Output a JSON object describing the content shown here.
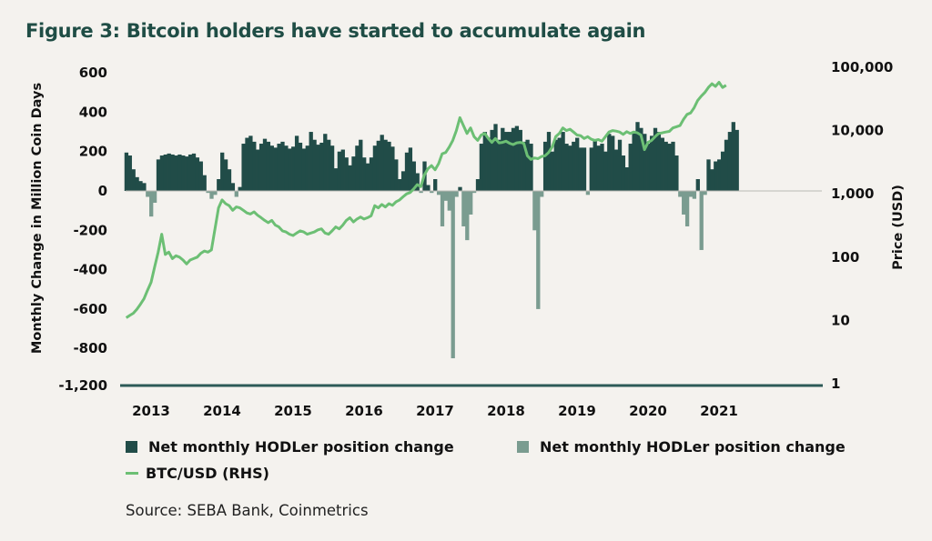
{
  "title": "Figure 3: Bitcoin holders have started to accumulate again",
  "source": "Source: SEBA Bank, Coinmetrics",
  "colors": {
    "background": "#f4f2ee",
    "title": "#1f4d45",
    "positive_bars": "#214c48",
    "negative_bars": "#7a9c90",
    "btc_line": "#6cbf74",
    "axis_baseline": "#2c5a57"
  },
  "chart_data": {
    "type": "area",
    "title": "Figure 3: Bitcoin holders have started to accumulate again",
    "ylabel": "Monthly Change in Million Coin Days",
    "y2label": "Price (USD)",
    "xlabel": "",
    "x_ticks": [
      "2013",
      "2014",
      "2015",
      "2016",
      "2017",
      "2018",
      "2019",
      "2020",
      "2021"
    ],
    "y_ticks": [
      "600",
      "400",
      "200",
      "0",
      "-200",
      "-400",
      "-600",
      "-800",
      "-1,200"
    ],
    "y2_ticks": [
      "100,000",
      "10,000",
      "1,000",
      "100",
      "10",
      "1"
    ],
    "ylim": [
      -1200,
      600
    ],
    "y_axis_break": "between -800 and -1,200",
    "y2lim": [
      1,
      100000
    ],
    "y2_scale": "log",
    "grid": false,
    "legend_position": "bottom",
    "legend": [
      {
        "label": "Net monthly HODLer position change",
        "type": "area",
        "color": "#214c48"
      },
      {
        "label": "Net monthly HODLer position change",
        "type": "area",
        "color": "#7a9c90"
      },
      {
        "label": "BTC/USD (RHS)",
        "type": "line",
        "color": "#6cbf74"
      }
    ],
    "x": [
      2012.65,
      2012.7,
      2012.75,
      2012.8,
      2012.85,
      2012.9,
      2012.95,
      2013.0,
      2013.05,
      2013.1,
      2013.15,
      2013.2,
      2013.25,
      2013.3,
      2013.35,
      2013.4,
      2013.45,
      2013.5,
      2013.55,
      2013.6,
      2013.65,
      2013.7,
      2013.75,
      2013.8,
      2013.85,
      2013.9,
      2013.95,
      2014.0,
      2014.05,
      2014.1,
      2014.15,
      2014.2,
      2014.25,
      2014.3,
      2014.35,
      2014.4,
      2014.45,
      2014.5,
      2014.55,
      2014.6,
      2014.65,
      2014.7,
      2014.75,
      2014.8,
      2014.85,
      2014.9,
      2014.95,
      2015.0,
      2015.05,
      2015.1,
      2015.15,
      2015.2,
      2015.25,
      2015.3,
      2015.35,
      2015.4,
      2015.45,
      2015.5,
      2015.55,
      2015.6,
      2015.65,
      2015.7,
      2015.75,
      2015.8,
      2015.85,
      2015.9,
      2015.95,
      2016.0,
      2016.05,
      2016.1,
      2016.15,
      2016.2,
      2016.25,
      2016.3,
      2016.35,
      2016.4,
      2016.45,
      2016.5,
      2016.55,
      2016.6,
      2016.65,
      2016.7,
      2016.75,
      2016.8,
      2016.85,
      2016.9,
      2016.95,
      2017.0,
      2017.05,
      2017.1,
      2017.15,
      2017.2,
      2017.25,
      2017.3,
      2017.35,
      2017.4,
      2017.45,
      2017.5,
      2017.55,
      2017.6,
      2017.65,
      2017.7,
      2017.75,
      2017.8,
      2017.85,
      2017.9,
      2017.95,
      2018.0,
      2018.05,
      2018.1,
      2018.15,
      2018.2,
      2018.25,
      2018.3,
      2018.35,
      2018.4,
      2018.45,
      2018.5,
      2018.55,
      2018.6,
      2018.65,
      2018.7,
      2018.75,
      2018.8,
      2018.85,
      2018.9,
      2018.95,
      2019.0,
      2019.05,
      2019.1,
      2019.15,
      2019.2,
      2019.25,
      2019.3,
      2019.35,
      2019.4,
      2019.45,
      2019.5,
      2019.55,
      2019.6,
      2019.65,
      2019.7,
      2019.75,
      2019.8,
      2019.85,
      2019.9,
      2019.95,
      2020.0,
      2020.05,
      2020.1,
      2020.15,
      2020.2,
      2020.25,
      2020.3,
      2020.35,
      2020.4,
      2020.45,
      2020.5,
      2020.55,
      2020.6,
      2020.65,
      2020.7,
      2020.75,
      2020.8,
      2020.85,
      2020.9,
      2020.95,
      2021.0,
      2021.05,
      2021.1,
      2021.15,
      2021.2,
      2021.25,
      2021.3,
      2021.35,
      2021.4
    ],
    "series": [
      {
        "name": "Net monthly HODLer position change",
        "axis": "left",
        "values": [
          195,
          180,
          110,
          70,
          50,
          40,
          -30,
          -130,
          -60,
          160,
          180,
          185,
          190,
          185,
          180,
          185,
          180,
          175,
          185,
          190,
          170,
          150,
          80,
          -10,
          -40,
          -20,
          60,
          195,
          160,
          110,
          40,
          -30,
          20,
          240,
          270,
          280,
          250,
          210,
          240,
          265,
          250,
          230,
          220,
          240,
          250,
          230,
          215,
          225,
          280,
          245,
          215,
          230,
          300,
          260,
          235,
          245,
          290,
          260,
          230,
          115,
          200,
          210,
          170,
          130,
          175,
          230,
          260,
          170,
          140,
          170,
          230,
          255,
          285,
          260,
          250,
          225,
          160,
          60,
          100,
          195,
          220,
          150,
          90,
          -10,
          150,
          30,
          -10,
          60,
          -20,
          -180,
          -50,
          -100,
          -850,
          -30,
          20,
          -180,
          -250,
          -120,
          -10,
          60,
          240,
          300,
          270,
          310,
          340,
          260,
          320,
          300,
          300,
          320,
          330,
          310,
          250,
          260,
          240,
          -200,
          -600,
          -30,
          250,
          300,
          200,
          260,
          270,
          300,
          240,
          230,
          250,
          270,
          220,
          220,
          -20,
          220,
          260,
          230,
          240,
          200,
          290,
          280,
          210,
          260,
          180,
          120,
          240,
          300,
          350,
          320,
          290,
          240,
          280,
          320,
          300,
          270,
          250,
          240,
          250,
          180,
          -30,
          -120,
          -180,
          -30,
          -40,
          60,
          -300,
          -20,
          160,
          110,
          150,
          160,
          200,
          260,
          300,
          350,
          310
        ]
      },
      {
        "name": "BTC/USD (RHS)",
        "axis": "right",
        "values": [
          11,
          12,
          13,
          15,
          18,
          22,
          30,
          40,
          70,
          120,
          230,
          110,
          120,
          95,
          105,
          100,
          90,
          78,
          90,
          95,
          100,
          115,
          125,
          120,
          130,
          280,
          600,
          800,
          700,
          650,
          550,
          620,
          600,
          550,
          500,
          480,
          520,
          460,
          420,
          380,
          350,
          380,
          320,
          300,
          260,
          250,
          230,
          220,
          240,
          260,
          250,
          230,
          240,
          250,
          270,
          280,
          240,
          230,
          260,
          300,
          280,
          320,
          380,
          420,
          360,
          400,
          430,
          400,
          420,
          450,
          650,
          600,
          680,
          620,
          700,
          660,
          750,
          800,
          900,
          1000,
          1050,
          1200,
          1400,
          1300,
          2000,
          2500,
          2800,
          2400,
          3000,
          4300,
          4500,
          5500,
          7000,
          10000,
          16000,
          12000,
          9000,
          11000,
          8000,
          7000,
          8500,
          9000,
          7500,
          6500,
          7500,
          6400,
          6500,
          6800,
          6300,
          6000,
          6400,
          6500,
          6300,
          4000,
          3500,
          3700,
          3600,
          3900,
          4000,
          4500,
          5500,
          8000,
          9000,
          11000,
          10000,
          10500,
          9500,
          8500,
          8300,
          7500,
          8000,
          7300,
          7000,
          7200,
          6800,
          8000,
          9500,
          10000,
          9800,
          9500,
          8700,
          9600,
          9000,
          9500,
          9200,
          8500,
          5000,
          6500,
          7000,
          8000,
          9000,
          9200,
          9500,
          9700,
          11000,
          11500,
          12000,
          15000,
          18000,
          19000,
          23000,
          30000,
          35000,
          40000,
          48000,
          55000,
          50000,
          58000,
          48000,
          52000
        ]
      }
    ]
  }
}
